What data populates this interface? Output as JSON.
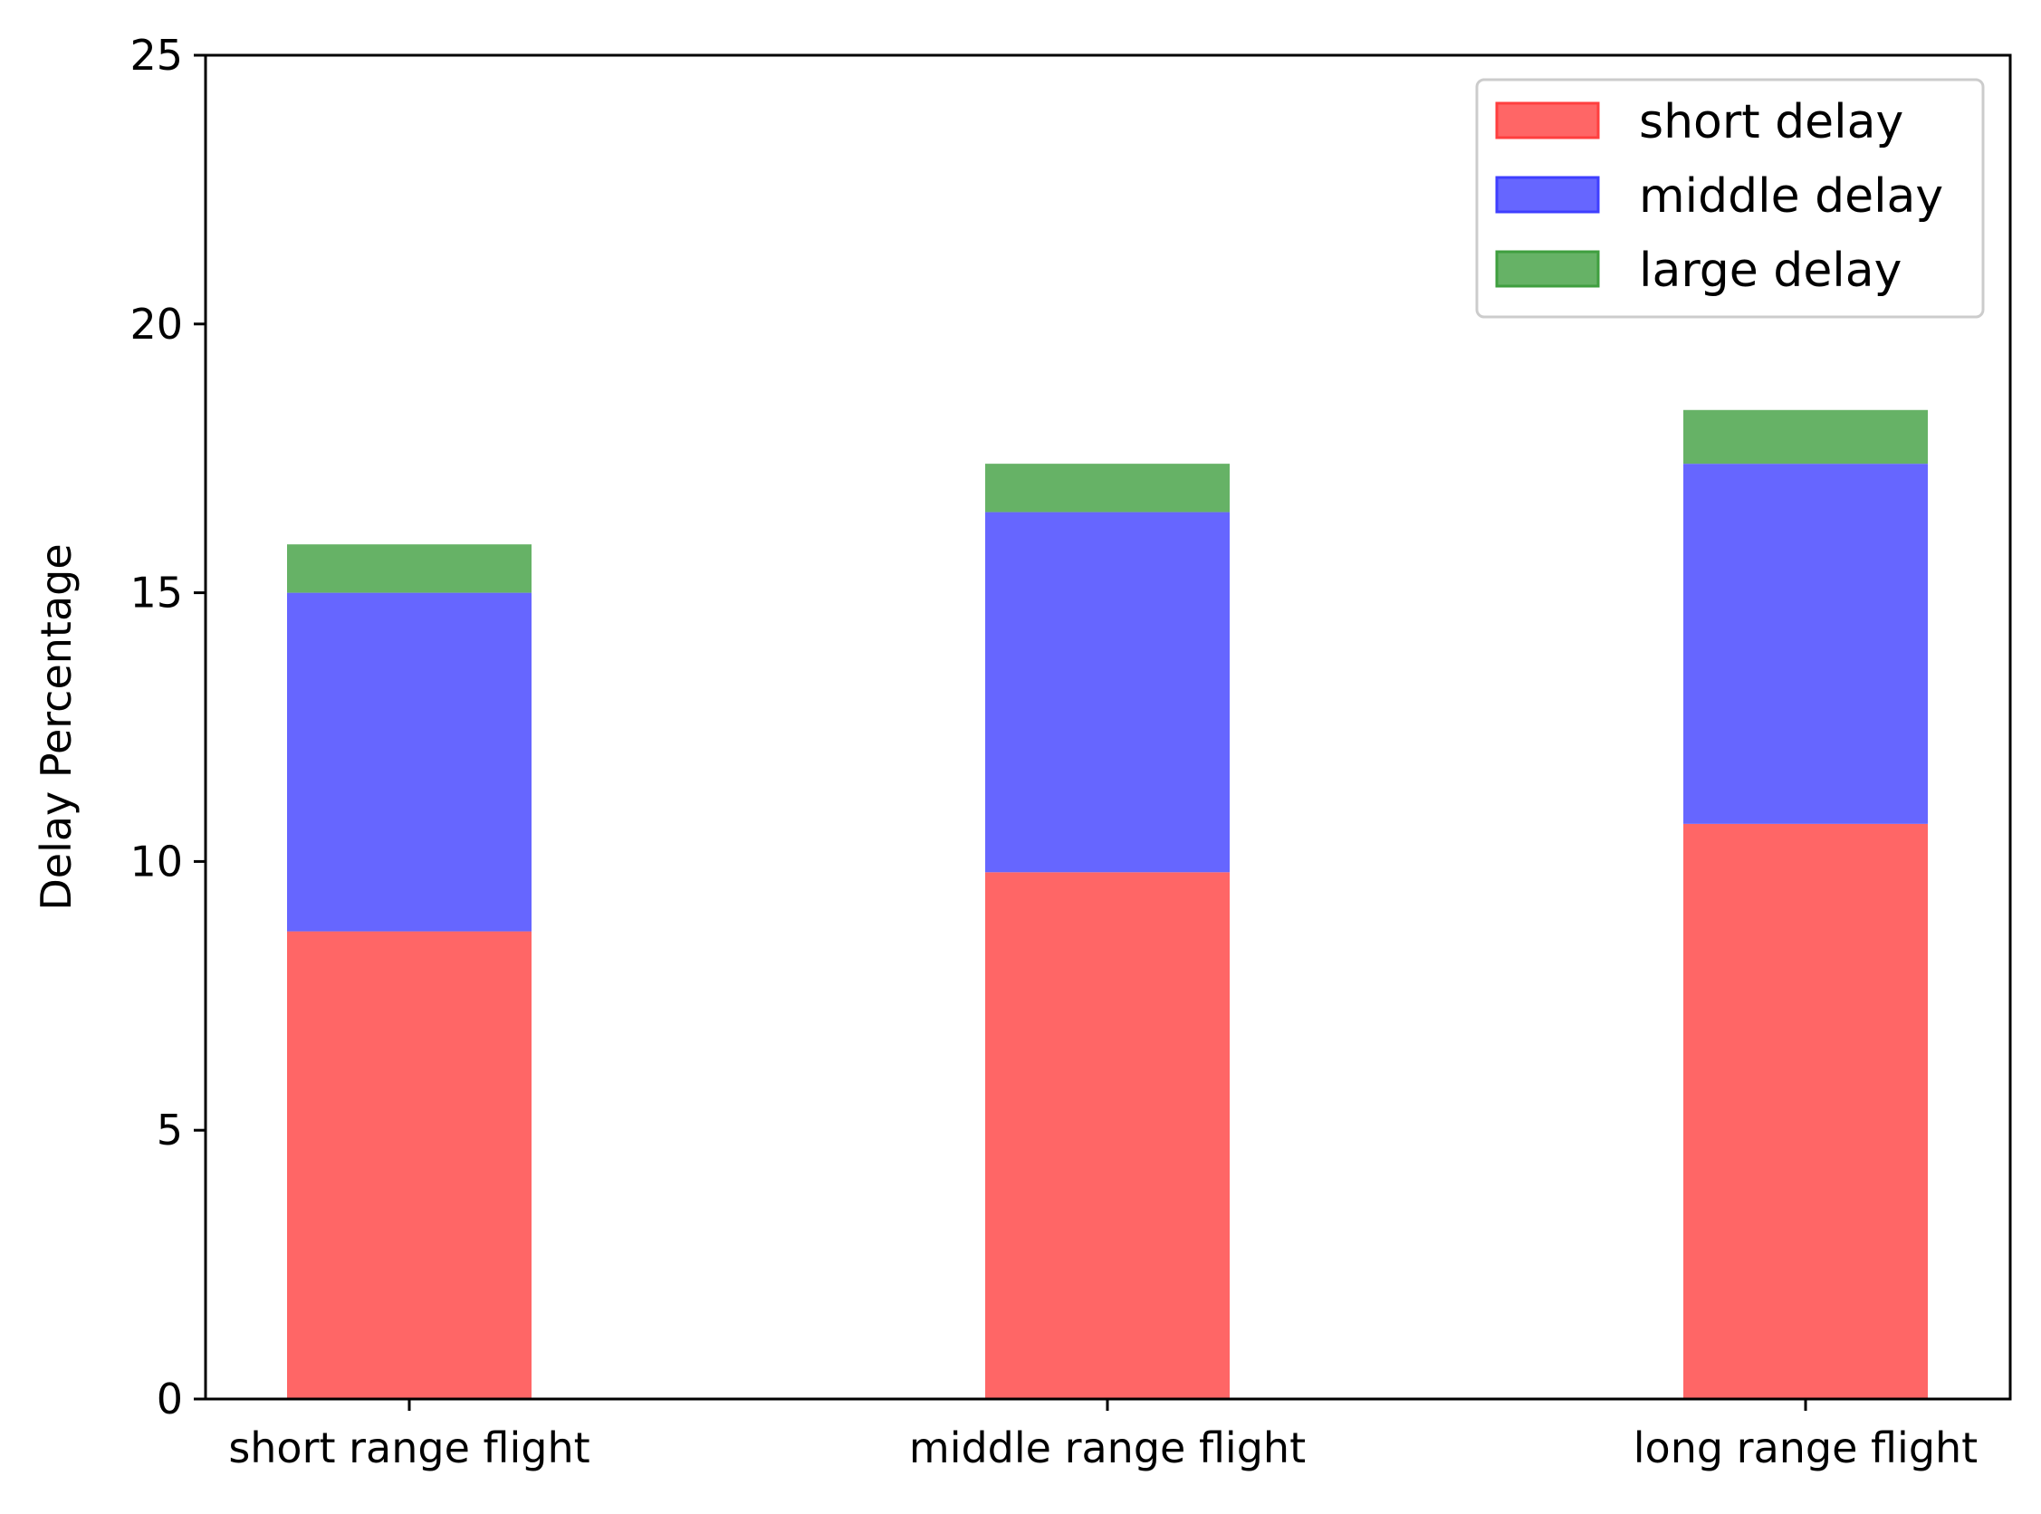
{
  "chart_data": {
    "type": "bar",
    "stacked": true,
    "categories": [
      "short range flight",
      "middle range flight",
      "long range flight"
    ],
    "series": [
      {
        "name": "short delay",
        "values": [
          8.7,
          9.8,
          10.7
        ],
        "color": "#ff6666"
      },
      {
        "name": "middle delay",
        "values": [
          6.3,
          6.7,
          6.7
        ],
        "color": "#6666ff"
      },
      {
        "name": "large delay",
        "values": [
          0.9,
          0.9,
          1.0
        ],
        "color": "#66b266"
      }
    ],
    "ylabel": "Delay Percentage",
    "xlabel": "",
    "title": "",
    "ylim": [
      0,
      25
    ],
    "yticks": [
      0,
      5,
      10,
      15,
      20,
      25
    ],
    "grid": false,
    "legend": {
      "position": "top-right",
      "edge_colors": [
        "#ff3f3f",
        "#3f3fff",
        "#3f9f3f"
      ]
    }
  }
}
